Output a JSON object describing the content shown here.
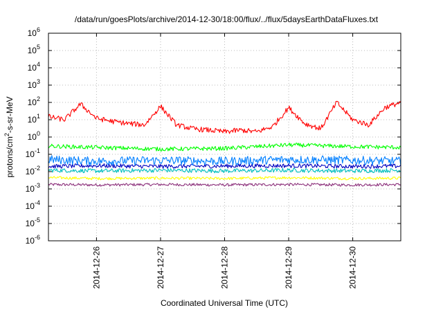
{
  "chart_data": {
    "type": "line",
    "title": "/data/run/goesPlots/archive/2014-12-30/18:00/flux/../flux/5daysEarthDataFluxes.txt",
    "xlabel": "Coordinated Universal Time (UTC)",
    "ylabel": "protons/cm2-s-sr-MeV",
    "ylabel_parts": [
      "protons/cm",
      "2",
      "-s-sr-MeV"
    ],
    "y_scale": "log",
    "ylim": [
      1e-06,
      1000000.0
    ],
    "y_ticks": [
      {
        "exp": "-6",
        "value": 1e-06
      },
      {
        "exp": "-5",
        "value": 1e-05
      },
      {
        "exp": "-4",
        "value": 0.0001
      },
      {
        "exp": "-3",
        "value": 0.001
      },
      {
        "exp": "-2",
        "value": 0.01
      },
      {
        "exp": "-1",
        "value": 0.1
      },
      {
        "exp": "0",
        "value": 1
      },
      {
        "exp": "1",
        "value": 10
      },
      {
        "exp": "2",
        "value": 100
      },
      {
        "exp": "3",
        "value": 1000
      },
      {
        "exp": "4",
        "value": 10000
      },
      {
        "exp": "5",
        "value": 100000
      },
      {
        "exp": "6",
        "value": 1000000
      }
    ],
    "y_tick_base": "10",
    "xlim": [
      "2014-12-25T06:00",
      "2014-12-30T18:00"
    ],
    "x_ticks": [
      "2014-12-26",
      "2014-12-27",
      "2014-12-28",
      "2014-12-29",
      "2014-12-30"
    ],
    "grid": true,
    "legend": "none",
    "series": [
      {
        "color": "#ff0000",
        "x": [
          "2014-12-25T06:00",
          "2014-12-25T12:00",
          "2014-12-25T18:00",
          "2014-12-26T00:00",
          "2014-12-26T06:00",
          "2014-12-26T12:00",
          "2014-12-26T18:00",
          "2014-12-27T00:00",
          "2014-12-27T06:00",
          "2014-12-27T12:00",
          "2014-12-27T18:00",
          "2014-12-28T00:00",
          "2014-12-28T06:00",
          "2014-12-28T12:00",
          "2014-12-28T18:00",
          "2014-12-29T00:00",
          "2014-12-29T06:00",
          "2014-12-29T12:00",
          "2014-12-29T18:00",
          "2014-12-30T00:00",
          "2014-12-30T06:00",
          "2014-12-30T12:00",
          "2014-12-30T18:00"
        ],
        "y": [
          15,
          10,
          80,
          12,
          8,
          6,
          5,
          60,
          5,
          3,
          2.5,
          2,
          2.5,
          2,
          4,
          50,
          6,
          3,
          100,
          10,
          5,
          50,
          100
        ]
      },
      {
        "color": "#00ff00",
        "x": [
          "2014-12-25T06:00",
          "2014-12-26T00:00",
          "2014-12-27T00:00",
          "2014-12-28T00:00",
          "2014-12-29T00:00",
          "2014-12-30T00:00",
          "2014-12-30T18:00"
        ],
        "y": [
          0.3,
          0.25,
          0.2,
          0.22,
          0.35,
          0.28,
          0.25
        ]
      },
      {
        "color": "#007fff",
        "x": [
          "2014-12-25T06:00",
          "2014-12-26T00:00",
          "2014-12-27T00:00",
          "2014-12-28T00:00",
          "2014-12-29T00:00",
          "2014-12-30T00:00",
          "2014-12-30T18:00"
        ],
        "y": [
          0.05,
          0.04,
          0.045,
          0.04,
          0.05,
          0.045,
          0.04
        ]
      },
      {
        "color": "#0000c0",
        "x": [
          "2014-12-25T06:00",
          "2014-12-26T00:00",
          "2014-12-27T00:00",
          "2014-12-28T00:00",
          "2014-12-29T00:00",
          "2014-12-30T00:00",
          "2014-12-30T18:00"
        ],
        "y": [
          0.02,
          0.022,
          0.02,
          0.021,
          0.022,
          0.02,
          0.021
        ]
      },
      {
        "color": "#00c0c0",
        "x": [
          "2014-12-25T06:00",
          "2014-12-26T00:00",
          "2014-12-27T00:00",
          "2014-12-28T00:00",
          "2014-12-29T00:00",
          "2014-12-30T00:00",
          "2014-12-30T18:00"
        ],
        "y": [
          0.012,
          0.011,
          0.012,
          0.011,
          0.012,
          0.011,
          0.012
        ]
      },
      {
        "color": "#ffff00",
        "x": [
          "2014-12-25T06:00",
          "2014-12-26T00:00",
          "2014-12-27T00:00",
          "2014-12-28T00:00",
          "2014-12-29T00:00",
          "2014-12-30T00:00",
          "2014-12-30T18:00"
        ],
        "y": [
          0.0045,
          0.004,
          0.0042,
          0.004,
          0.0045,
          0.004,
          0.0042
        ]
      },
      {
        "color": "#8b2f7a",
        "x": [
          "2014-12-25T06:00",
          "2014-12-26T00:00",
          "2014-12-27T00:00",
          "2014-12-28T00:00",
          "2014-12-29T00:00",
          "2014-12-30T00:00",
          "2014-12-30T18:00"
        ],
        "y": [
          0.0018,
          0.0017,
          0.0018,
          0.0017,
          0.0018,
          0.0017,
          0.0018
        ]
      }
    ]
  }
}
